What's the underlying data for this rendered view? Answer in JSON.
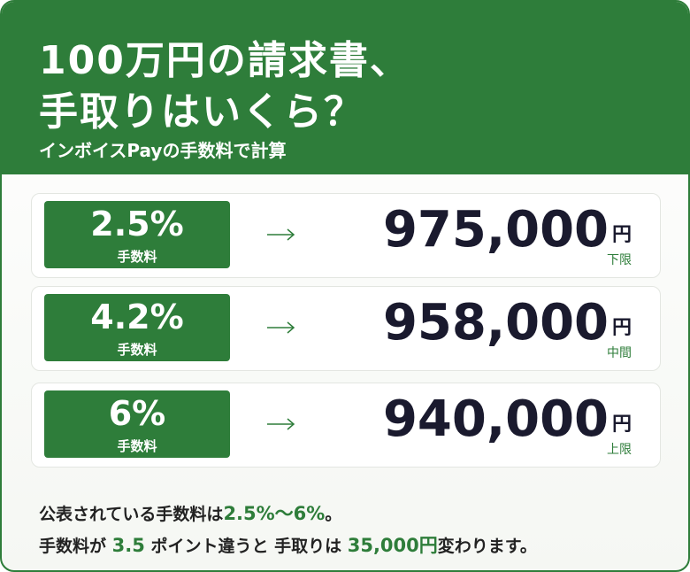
{
  "header": {
    "title_lines": [
      "100万円の請求書、",
      "手取りはいくら？"
    ],
    "subtitle": "インボイスPayの手数料で計算"
  },
  "rows": [
    {
      "rate": "2.5%",
      "rate_label": "手数料",
      "amount": "975,000",
      "unit": "円",
      "note": "下限"
    },
    {
      "rate": "4.2%",
      "rate_label": "手数料",
      "amount": "958,000",
      "unit": "円",
      "note": "中間"
    },
    {
      "rate": "6%",
      "rate_label": "手数料",
      "amount": "940,000",
      "unit": "円",
      "note": "上限"
    }
  ],
  "footer": {
    "line1": [
      "公表されている手数料は",
      "2.5%〜6%",
      "。"
    ],
    "line2": [
      "手数料が",
      "3.5",
      "ポイント違うと 手取りは",
      "35,000円",
      "変わります。"
    ]
  }
}
